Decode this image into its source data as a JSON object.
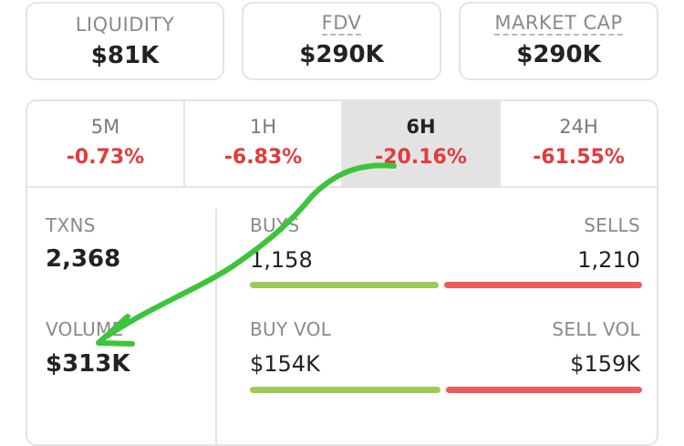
{
  "stats": [
    {
      "label": "LIQUIDITY",
      "value": "$81K"
    },
    {
      "label": "FDV",
      "value": "$290K"
    },
    {
      "label": "MARKET CAP",
      "value": "$290K"
    }
  ],
  "tabs": [
    {
      "label": "5M",
      "change": "-0.73%"
    },
    {
      "label": "1H",
      "change": "-6.83%"
    },
    {
      "label": "6H",
      "change": "-20.16%",
      "active": true
    },
    {
      "label": "24H",
      "change": "-61.55%"
    }
  ],
  "txns": {
    "label": "TXNS",
    "value": "2,368"
  },
  "volume": {
    "label": "VOLUME",
    "value": "$313K"
  },
  "buys": {
    "label": "BUYS",
    "value": "1,158"
  },
  "sells": {
    "label": "SELLS",
    "value": "1,210"
  },
  "buy_vol": {
    "label": "BUY VOL",
    "value": "$154K"
  },
  "sell_vol": {
    "label": "SELL VOL",
    "value": "$159K"
  },
  "ratios": {
    "txns_buy_share": 0.489,
    "volume_buy_share": 0.492
  },
  "colors": {
    "negative": "#e23b3b",
    "buy_bar": "#9ccc57",
    "sell_bar": "#ef5b5b",
    "annotation_arrow": "#3cc43c",
    "active_tab_bg": "#e3e3e3"
  },
  "annotation": {
    "icon": "hand-drawn-arrow-icon"
  }
}
